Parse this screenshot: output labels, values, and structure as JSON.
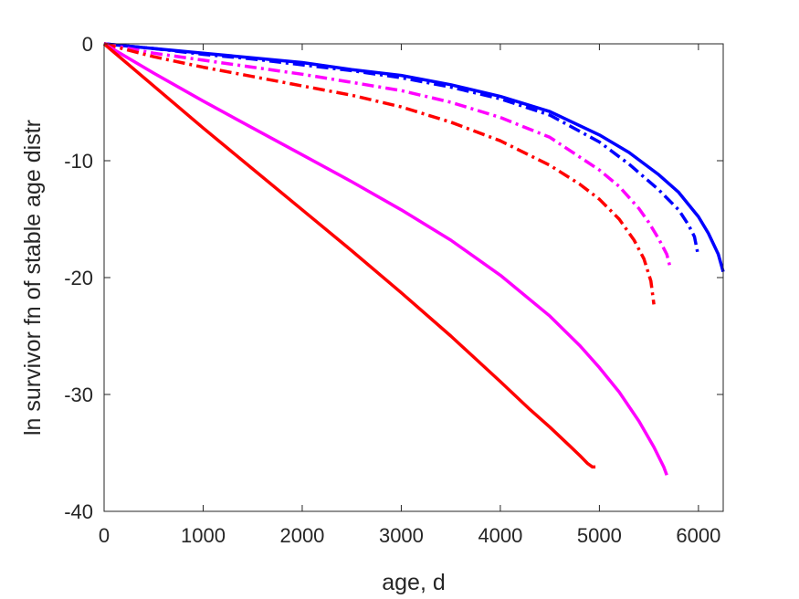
{
  "chart_data": {
    "type": "line",
    "xlabel": "age, d",
    "ylabel": "ln survivor fn of stable age distr",
    "xlim": [
      0,
      6250
    ],
    "ylim": [
      -40,
      0
    ],
    "xticks": [
      0,
      1000,
      2000,
      3000,
      4000,
      5000,
      6000
    ],
    "yticks": [
      0,
      -10,
      -20,
      -30,
      -40
    ],
    "xtick_labels": [
      "0",
      "1000",
      "2000",
      "3000",
      "4000",
      "5000",
      "6000"
    ],
    "ytick_labels": [
      "0",
      "-10",
      "-20",
      "-30",
      "-40"
    ],
    "grid": false,
    "legend": "none",
    "series": [
      {
        "color": "#0000ff",
        "style": "solid",
        "x": [
          0,
          500,
          1000,
          1500,
          2000,
          2500,
          3000,
          3500,
          4000,
          4500,
          5000,
          5300,
          5600,
          5800,
          6000,
          6100,
          6200,
          6250
        ],
        "y": [
          0,
          -0.4,
          -0.8,
          -1.2,
          -1.6,
          -2.2,
          -2.7,
          -3.5,
          -4.5,
          -5.8,
          -7.8,
          -9.3,
          -11.2,
          -12.7,
          -14.8,
          -16.2,
          -18.0,
          -19.5
        ]
      },
      {
        "color": "#0000ff",
        "style": "dashdot",
        "x": [
          0,
          500,
          1000,
          1500,
          2000,
          2500,
          3000,
          3500,
          4000,
          4500,
          5000,
          5300,
          5600,
          5800,
          5900,
          5960,
          5990
        ],
        "y": [
          0,
          -0.4,
          -0.9,
          -1.3,
          -1.8,
          -2.3,
          -2.9,
          -3.7,
          -4.7,
          -6.1,
          -8.4,
          -10.3,
          -12.5,
          -14.2,
          -15.5,
          -16.5,
          -17.8
        ]
      },
      {
        "color": "#ff00ff",
        "style": "dashdot",
        "x": [
          0,
          500,
          1000,
          1500,
          2000,
          2500,
          3000,
          3500,
          4000,
          4500,
          5000,
          5200,
          5400,
          5500,
          5600,
          5680,
          5720
        ],
        "y": [
          0,
          -0.8,
          -1.4,
          -2.0,
          -2.6,
          -3.3,
          -4.0,
          -5.0,
          -6.3,
          -8.0,
          -10.8,
          -12.2,
          -14.1,
          -15.3,
          -16.7,
          -18.0,
          -19.3
        ]
      },
      {
        "color": "#ff0000",
        "style": "dashdot",
        "x": [
          0,
          500,
          1000,
          1500,
          2000,
          2500,
          3000,
          3500,
          4000,
          4500,
          4800,
          5000,
          5200,
          5350,
          5450,
          5520,
          5550
        ],
        "y": [
          0,
          -1.1,
          -2.0,
          -2.8,
          -3.6,
          -4.4,
          -5.4,
          -6.7,
          -8.3,
          -10.4,
          -12.0,
          -13.3,
          -15.0,
          -16.8,
          -18.4,
          -20.3,
          -22.3
        ]
      },
      {
        "color": "#ff00ff",
        "style": "solid",
        "x": [
          0,
          500,
          1000,
          1500,
          2000,
          2500,
          3000,
          3500,
          4000,
          4500,
          4800,
          5000,
          5200,
          5400,
          5550,
          5650,
          5680
        ],
        "y": [
          0,
          -2.5,
          -4.9,
          -7.2,
          -9.5,
          -11.8,
          -14.2,
          -16.8,
          -19.8,
          -23.3,
          -25.8,
          -27.7,
          -29.8,
          -32.3,
          -34.5,
          -36.2,
          -36.9
        ]
      },
      {
        "color": "#ff0000",
        "style": "solid",
        "x": [
          0,
          500,
          1000,
          1500,
          2000,
          2500,
          3000,
          3500,
          4000,
          4300,
          4500,
          4700,
          4800,
          4880,
          4930,
          4960
        ],
        "y": [
          0,
          -3.6,
          -7.2,
          -10.7,
          -14.2,
          -17.7,
          -21.3,
          -25.0,
          -28.9,
          -31.3,
          -32.8,
          -34.4,
          -35.2,
          -35.9,
          -36.2,
          -36.2
        ]
      }
    ]
  }
}
